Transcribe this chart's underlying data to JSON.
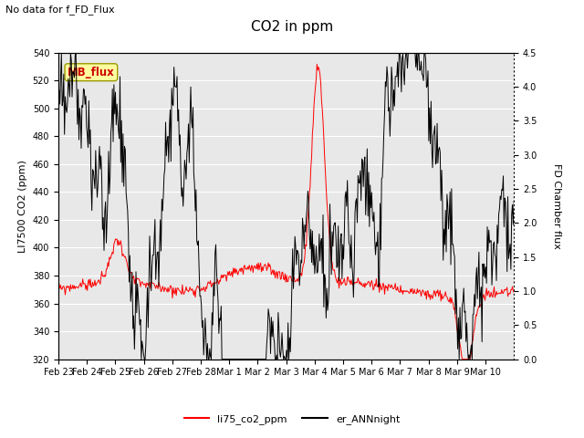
{
  "title": "CO2 in ppm",
  "top_left_text": "No data for f_FD_Flux",
  "ylabel_left": "LI7500 CO2 (ppm)",
  "ylabel_right": "FD Chamber flux",
  "ylim_left": [
    320,
    540
  ],
  "ylim_right": [
    0.0,
    4.5
  ],
  "yticks_left": [
    320,
    340,
    360,
    380,
    400,
    420,
    440,
    460,
    480,
    500,
    520,
    540
  ],
  "yticks_right": [
    0.0,
    0.5,
    1.0,
    1.5,
    2.0,
    2.5,
    3.0,
    3.5,
    4.0,
    4.5
  ],
  "legend_labels": [
    "li75_co2_ppm",
    "er_ANNnight"
  ],
  "legend_colors": [
    "red",
    "black"
  ],
  "mb_flux_label": "MB_flux",
  "mb_flux_box_color": "#ffffa0",
  "mb_flux_text_color": "#cc0000",
  "mb_flux_edge_color": "#999900",
  "background_color": "#e8e8e8",
  "grid_color": "white",
  "fig_bgcolor": "white",
  "n_points": 600,
  "xtick_labels": [
    "Feb 23",
    "Feb 24",
    "Feb 25",
    "Feb 26",
    "Feb 27",
    "Feb 28",
    "Mar 1",
    "Mar 2",
    "Mar 3",
    "Mar 4",
    "Mar 5",
    "Mar 6",
    "Mar 7",
    "Mar 8",
    "Mar 9",
    "Mar 10"
  ],
  "title_fontsize": 11,
  "topleft_fontsize": 8,
  "ylabel_fontsize": 8,
  "tick_fontsize": 7,
  "legend_fontsize": 8
}
